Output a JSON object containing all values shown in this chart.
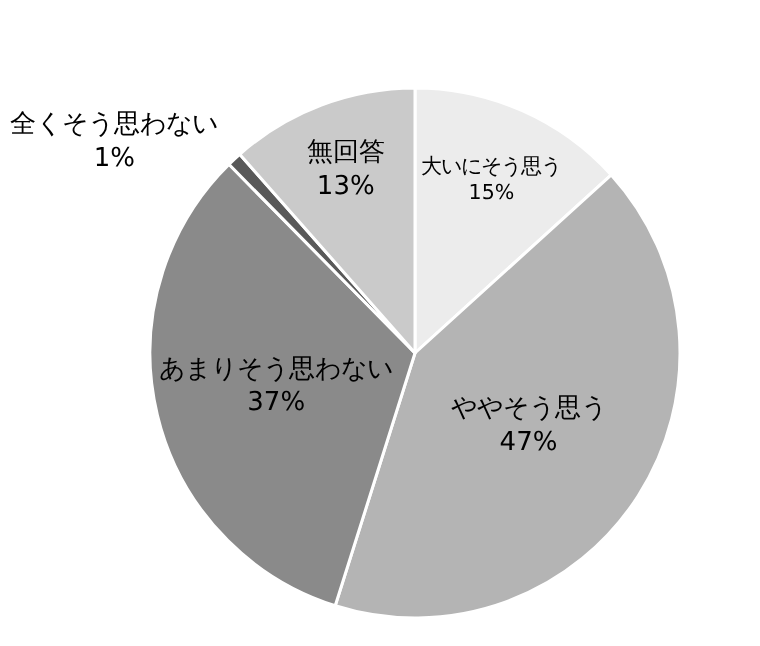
{
  "chart_data": {
    "type": "pie",
    "categories": [
      "大いにそう思う",
      "ややそう思う",
      "あまりそう思わない",
      "全くそう思わない",
      "無回答"
    ],
    "values": [
      15,
      47,
      37,
      1,
      13
    ],
    "value_labels": [
      "15%",
      "47%",
      "37%",
      "1%",
      "13%"
    ],
    "colors": [
      "#ececec",
      "#b4b4b4",
      "#8a8a8a",
      "#595959",
      "#cacaca"
    ],
    "legend": false
  }
}
